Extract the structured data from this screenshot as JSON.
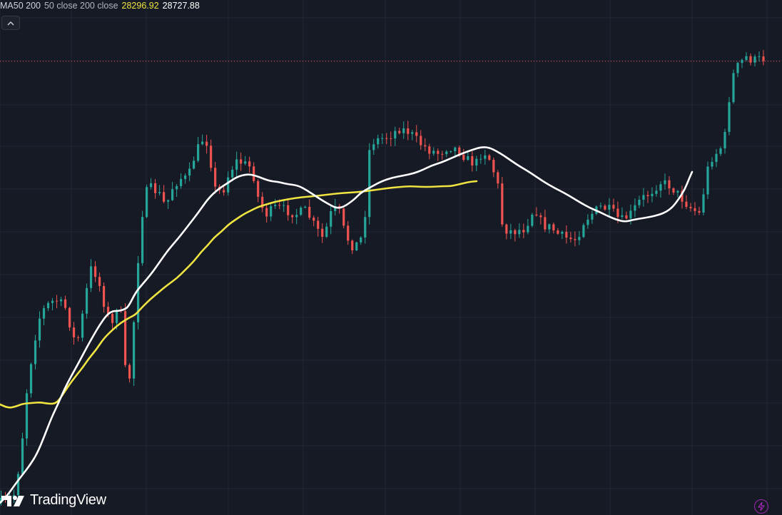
{
  "legend": {
    "ma_name": "MA50 200",
    "ma_params": "50 close 200 close",
    "ma50_value": "28296.92",
    "ma200_value": "28727.88"
  },
  "brand": {
    "name": "TradingView"
  },
  "icons": {
    "collapse": "chevron-up-icon",
    "logo": "tradingview-logo-icon",
    "bolt": "lightning-icon"
  },
  "colors": {
    "background": "#161a25",
    "grid": "#232733",
    "bullish": "#26a69a",
    "bearish": "#ef5350",
    "ma50": "#f0e442",
    "ma200": "#ffffff",
    "price_line": "#ef5350",
    "bolt": "#9c27b0"
  },
  "chart_data": {
    "type": "candlestick",
    "y_range": [
      0,
      722
    ],
    "n_candles": 179,
    "grid": true,
    "price_line_level": 86,
    "close_anchors": [
      [
        0,
        705
      ],
      [
        5,
        698
      ],
      [
        8,
        640
      ],
      [
        10,
        560
      ],
      [
        12,
        510
      ],
      [
        15,
        450
      ],
      [
        18,
        430
      ],
      [
        22,
        420
      ],
      [
        26,
        430
      ],
      [
        30,
        480
      ],
      [
        32,
        470
      ],
      [
        34,
        420
      ],
      [
        37,
        370
      ],
      [
        40,
        400
      ],
      [
        43,
        440
      ],
      [
        46,
        460
      ],
      [
        48,
        400
      ],
      [
        50,
        510
      ],
      [
        52,
        540
      ],
      [
        54,
        450
      ],
      [
        56,
        350
      ],
      [
        58,
        280
      ],
      [
        60,
        262
      ],
      [
        64,
        270
      ],
      [
        67,
        290
      ],
      [
        70,
        260
      ],
      [
        73,
        250
      ],
      [
        76,
        250
      ],
      [
        79,
        215
      ],
      [
        82,
        195
      ],
      [
        84,
        200
      ],
      [
        87,
        265
      ],
      [
        90,
        270
      ],
      [
        93,
        240
      ],
      [
        96,
        225
      ],
      [
        99,
        230
      ],
      [
        102,
        235
      ],
      [
        105,
        285
      ],
      [
        108,
        300
      ],
      [
        112,
        290
      ],
      [
        116,
        295
      ],
      [
        120,
        300
      ],
      [
        124,
        295
      ],
      [
        128,
        320
      ],
      [
        131,
        335
      ],
      [
        134,
        300
      ],
      [
        137,
        290
      ],
      [
        140,
        330
      ],
      [
        143,
        345
      ],
      [
        146,
        340
      ],
      [
        148,
        300
      ],
      [
        150,
        200
      ],
      [
        154,
        195
      ],
      [
        158,
        190
      ],
      [
        162,
        180
      ],
      [
        166,
        185
      ],
      [
        170,
        200
      ],
      [
        174,
        210
      ],
      [
        178,
        215
      ],
      [
        182,
        205
      ],
      [
        186,
        210
      ],
      [
        190,
        225
      ],
      [
        193,
        230
      ],
      [
        196,
        210
      ],
      [
        199,
        225
      ],
      [
        202,
        260
      ],
      [
        204,
        320
      ],
      [
        208,
        325
      ],
      [
        213,
        320
      ],
      [
        217,
        290
      ],
      [
        220,
        315
      ],
      [
        224,
        320
      ],
      [
        227,
        330
      ],
      [
        231,
        335
      ],
      [
        234,
        335
      ],
      [
        237,
        310
      ],
      [
        240,
        300
      ],
      [
        244,
        290
      ],
      [
        248,
        295
      ],
      [
        252,
        310
      ],
      [
        256,
        300
      ],
      [
        260,
        280
      ],
      [
        264,
        270
      ],
      [
        268,
        255
      ],
      [
        272,
        260
      ],
      [
        276,
        275
      ],
      [
        280,
        290
      ],
      [
        284,
        300
      ],
      [
        288,
        225
      ],
      [
        292,
        210
      ],
      [
        294,
        200
      ],
      [
        297,
        110
      ],
      [
        300,
        90
      ],
      [
        303,
        80
      ],
      [
        306,
        85
      ],
      [
        310,
        82
      ]
    ],
    "ma50_points": [
      [
        0,
        567
      ],
      [
        12,
        572
      ],
      [
        22,
        570
      ],
      [
        32,
        566
      ],
      [
        44,
        565
      ],
      [
        56,
        564
      ],
      [
        68,
        566
      ],
      [
        76,
        566
      ],
      [
        82,
        562
      ],
      [
        90,
        550
      ],
      [
        98,
        538
      ],
      [
        108,
        525
      ],
      [
        116,
        515
      ],
      [
        125,
        502
      ],
      [
        135,
        490
      ],
      [
        145,
        475
      ],
      [
        158,
        462
      ],
      [
        170,
        452
      ],
      [
        182,
        445
      ],
      [
        190,
        441
      ],
      [
        198,
        432
      ],
      [
        210,
        420
      ],
      [
        222,
        410
      ],
      [
        234,
        400
      ],
      [
        248,
        390
      ],
      [
        260,
        378
      ],
      [
        272,
        366
      ],
      [
        282,
        353
      ],
      [
        292,
        343
      ],
      [
        300,
        333
      ],
      [
        310,
        325
      ],
      [
        320,
        315
      ],
      [
        330,
        308
      ],
      [
        342,
        300
      ],
      [
        352,
        295
      ],
      [
        362,
        290
      ],
      [
        372,
        287
      ],
      [
        385,
        283
      ],
      [
        400,
        280
      ],
      [
        418,
        277
      ],
      [
        440,
        275
      ],
      [
        458,
        273
      ],
      [
        475,
        271
      ],
      [
        490,
        270
      ],
      [
        505,
        269
      ],
      [
        520,
        267
      ],
      [
        535,
        265
      ],
      [
        550,
        263
      ],
      [
        562,
        262
      ],
      [
        575,
        261
      ],
      [
        590,
        262
      ],
      [
        605,
        262
      ],
      [
        620,
        261
      ],
      [
        632,
        261
      ],
      [
        645,
        258
      ],
      [
        658,
        255
      ],
      [
        668,
        254
      ]
    ],
    "ma200_points": [
      [
        0,
        705
      ],
      [
        10,
        695
      ],
      [
        22,
        678
      ],
      [
        32,
        665
      ],
      [
        42,
        652
      ],
      [
        52,
        636
      ],
      [
        62,
        612
      ],
      [
        72,
        586
      ],
      [
        82,
        565
      ],
      [
        90,
        546
      ],
      [
        100,
        527
      ],
      [
        110,
        509
      ],
      [
        120,
        490
      ],
      [
        130,
        472
      ],
      [
        140,
        455
      ],
      [
        150,
        441
      ],
      [
        158,
        436
      ],
      [
        166,
        436
      ],
      [
        174,
        434
      ],
      [
        180,
        430
      ],
      [
        190,
        410
      ],
      [
        200,
        398
      ],
      [
        212,
        384
      ],
      [
        224,
        367
      ],
      [
        236,
        350
      ],
      [
        250,
        334
      ],
      [
        264,
        316
      ],
      [
        278,
        298
      ],
      [
        292,
        278
      ],
      [
        306,
        265
      ],
      [
        320,
        256
      ],
      [
        332,
        248
      ],
      [
        346,
        244
      ],
      [
        358,
        246
      ],
      [
        370,
        251
      ],
      [
        380,
        254
      ],
      [
        390,
        255
      ],
      [
        402,
        258
      ],
      [
        418,
        260
      ],
      [
        432,
        268
      ],
      [
        450,
        280
      ],
      [
        462,
        287
      ],
      [
        472,
        292
      ],
      [
        482,
        290
      ],
      [
        496,
        280
      ],
      [
        506,
        270
      ],
      [
        520,
        262
      ],
      [
        535,
        254
      ],
      [
        550,
        249
      ],
      [
        566,
        246
      ],
      [
        580,
        243
      ],
      [
        593,
        238
      ],
      [
        605,
        232
      ],
      [
        618,
        228
      ],
      [
        632,
        222
      ],
      [
        648,
        215
      ],
      [
        662,
        210
      ],
      [
        675,
        206
      ],
      [
        686,
        207
      ],
      [
        696,
        212
      ],
      [
        706,
        218
      ],
      [
        716,
        225
      ],
      [
        728,
        233
      ],
      [
        740,
        240
      ],
      [
        752,
        248
      ],
      [
        764,
        256
      ],
      [
        778,
        264
      ],
      [
        790,
        270
      ],
      [
        802,
        277
      ],
      [
        815,
        285
      ],
      [
        828,
        292
      ],
      [
        840,
        297
      ],
      [
        852,
        303
      ],
      [
        864,
        308
      ],
      [
        876,
        311
      ],
      [
        888,
        308
      ],
      [
        900,
        306
      ],
      [
        912,
        304
      ],
      [
        924,
        301
      ],
      [
        934,
        297
      ],
      [
        943,
        290
      ],
      [
        952,
        278
      ],
      [
        960,
        265
      ],
      [
        966,
        250
      ],
      [
        970,
        241
      ]
    ]
  }
}
